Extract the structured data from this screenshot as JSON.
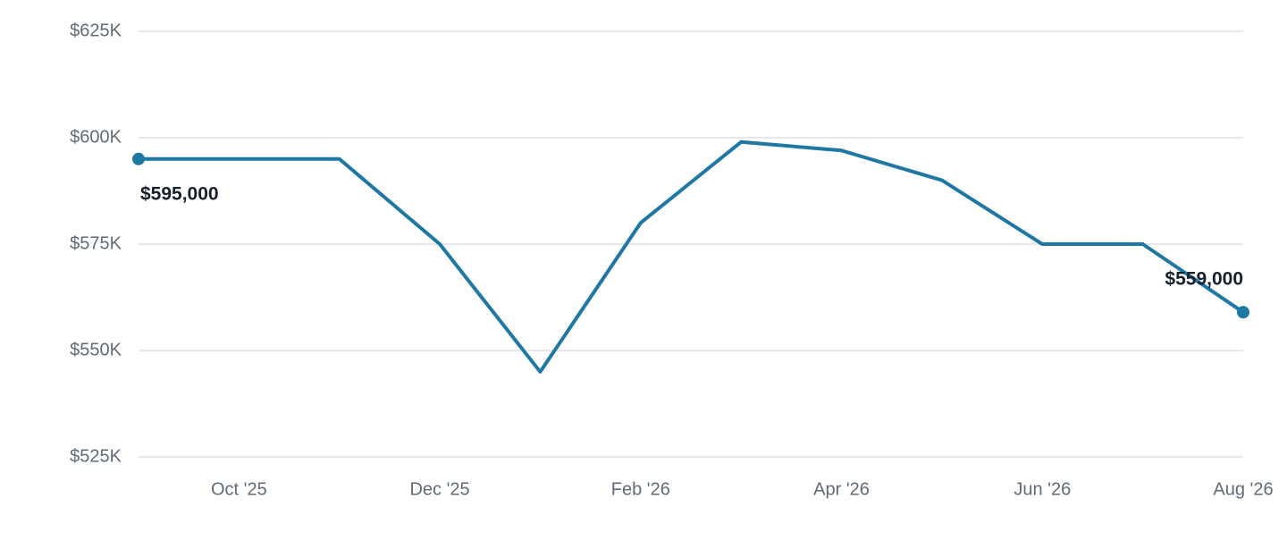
{
  "chart_data": {
    "type": "line",
    "categories": [
      null,
      "Oct '25",
      null,
      "Dec '25",
      null,
      "Feb '26",
      null,
      "Apr '26",
      null,
      "Jun '26",
      null,
      "Aug '26"
    ],
    "values": [
      595000,
      595000,
      595000,
      575000,
      545000,
      580000,
      599000,
      597000,
      590000,
      575000,
      575000,
      559000
    ],
    "value_labels": [
      "$595,000",
      null,
      null,
      null,
      null,
      null,
      null,
      null,
      null,
      null,
      null,
      "$559,000"
    ],
    "color": "#1f77a4",
    "ylim": [
      525000,
      625000
    ],
    "yticks": [
      {
        "value": 525000,
        "label": "$525K"
      },
      {
        "value": 550000,
        "label": "$550K"
      },
      {
        "value": 575000,
        "label": "$575K"
      },
      {
        "value": 600000,
        "label": "$600K"
      },
      {
        "value": 625000,
        "label": "$625K"
      }
    ],
    "grid": true
  }
}
